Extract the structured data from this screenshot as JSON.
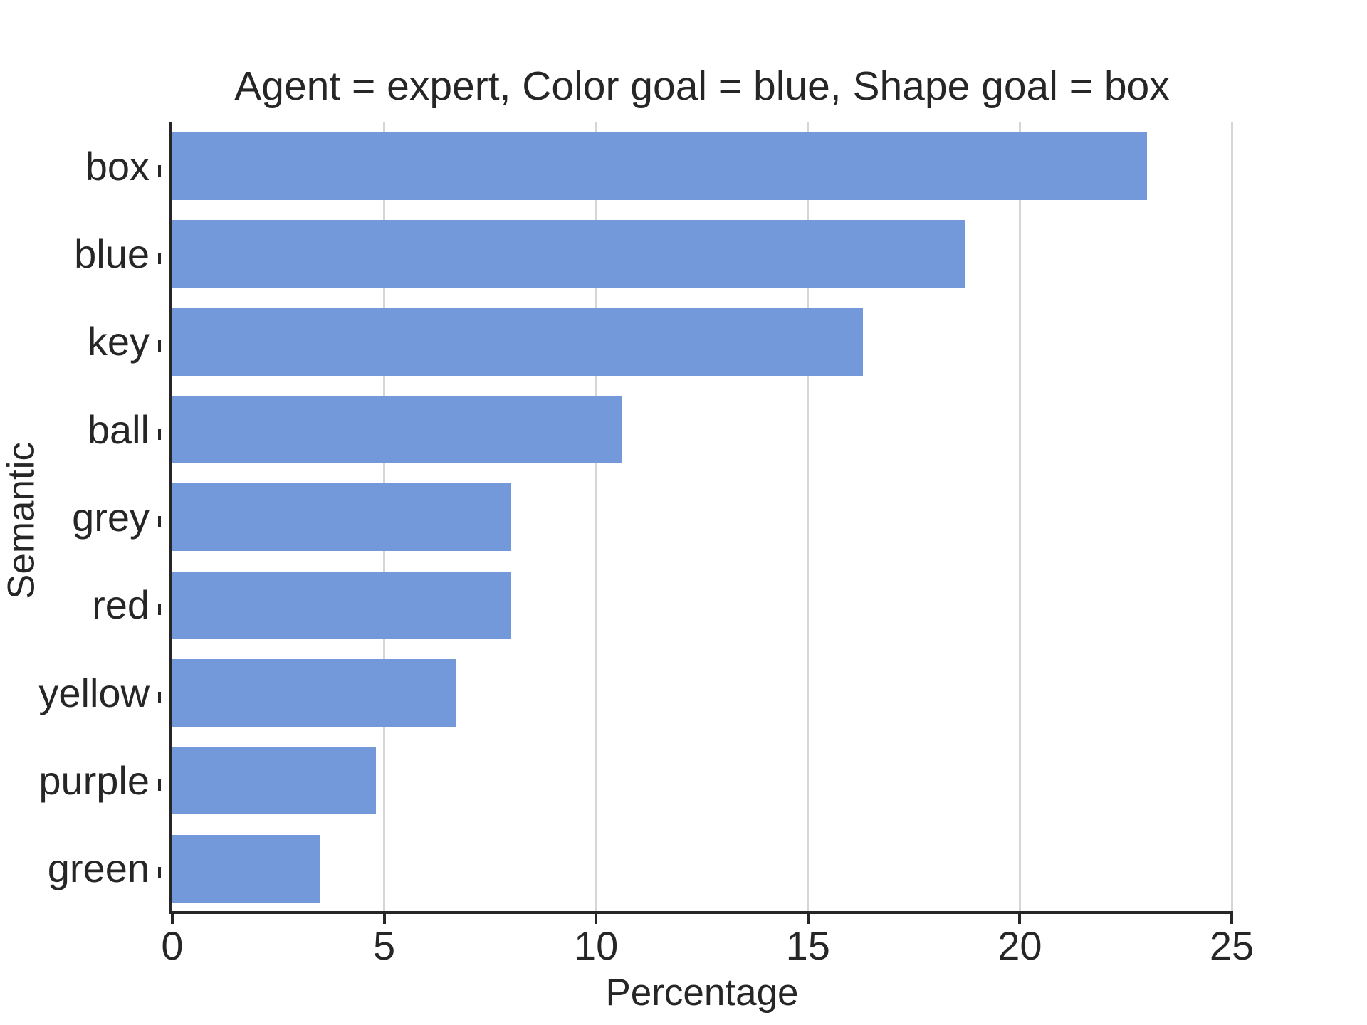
{
  "chart_data": {
    "type": "bar",
    "orientation": "horizontal",
    "title": "Agent = expert, Color goal = blue, Shape goal = box",
    "categories": [
      "box",
      "blue",
      "key",
      "ball",
      "grey",
      "red",
      "yellow",
      "purple",
      "green"
    ],
    "values": [
      23.0,
      18.7,
      16.3,
      10.6,
      8.0,
      8.0,
      6.7,
      4.8,
      3.5
    ],
    "xlabel": "Percentage",
    "ylabel": "Semantic",
    "xlim": [
      0,
      25
    ],
    "xticks": [
      0,
      5,
      10,
      15,
      20,
      25
    ],
    "grid": "vertical gridlines at x ticks, behind bars",
    "legend": "none",
    "bar_color": "#7399da",
    "grid_color": "#d6d6d6",
    "axis_color": "#262626",
    "text_color": "#262626"
  }
}
